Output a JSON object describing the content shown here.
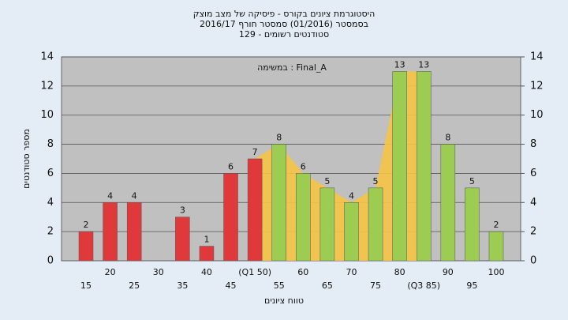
{
  "chart_data": {
    "type": "bar",
    "title": "היסטוגרמת ציונים בקורס - פיסיקה של מצב מוצק",
    "subtitle": "בסמסטר  (01/2016)  סמסטר חורף 2016/17",
    "subtitle2": "סטודנטים רשומים - 129",
    "annotation": "במשימה : Final_A",
    "y_label": "מספר סטודנטים",
    "x_label": "טווח ציונים",
    "categories": [
      "15",
      "20",
      "25",
      "30",
      "35",
      "40",
      "45",
      "(Q1 50)",
      "55",
      "60",
      "65",
      "70",
      "75",
      "80",
      "(Q3 85)",
      "90",
      "95",
      "100"
    ],
    "values": [
      2,
      4,
      4,
      null,
      3,
      1,
      6,
      7,
      8,
      6,
      5,
      4,
      5,
      13,
      13,
      8,
      5,
      2
    ],
    "bar_colors": [
      "#e0393b",
      "#e0393b",
      "#e0393b",
      "#e0393b",
      "#e0393b",
      "#e0393b",
      "#e0393b",
      "#e0393b",
      "#9ccc52",
      "#9ccc52",
      "#9ccc52",
      "#9ccc52",
      "#9ccc52",
      "#9ccc52",
      "#9ccc52",
      "#9ccc52",
      "#9ccc52",
      "#9ccc52"
    ],
    "area_color": "#f6c445",
    "ylim": [
      0,
      14
    ],
    "yticks": [
      0,
      2,
      4,
      6,
      8,
      10,
      12,
      14
    ],
    "y2lim": [
      0,
      14
    ],
    "y2ticks": [
      0,
      2,
      4,
      6,
      8,
      10,
      12,
      14
    ],
    "grid": true
  }
}
